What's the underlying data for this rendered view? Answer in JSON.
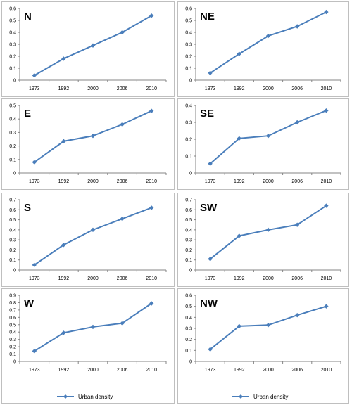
{
  "chart_data": [
    {
      "type": "line",
      "title": "N",
      "categories": [
        "1973",
        "1992",
        "2000",
        "2006",
        "2010"
      ],
      "series": [
        {
          "name": "Urban density",
          "values": [
            0.04,
            0.18,
            0.29,
            0.4,
            0.54
          ]
        }
      ],
      "ylim": [
        0,
        0.6
      ],
      "yticks": [
        "0",
        "0.1",
        "0.2",
        "0.3",
        "0.4",
        "0.5",
        "0.6"
      ],
      "legend": false,
      "grid": false
    },
    {
      "type": "line",
      "title": "NE",
      "categories": [
        "1973",
        "1992",
        "2000",
        "2006",
        "2010"
      ],
      "series": [
        {
          "name": "Urban density",
          "values": [
            0.06,
            0.22,
            0.37,
            0.45,
            0.57
          ]
        }
      ],
      "ylim": [
        0,
        0.6
      ],
      "yticks": [
        "0",
        "0.1",
        "0.2",
        "0.3",
        "0.4",
        "0.5",
        "0.6"
      ],
      "legend": false,
      "grid": false
    },
    {
      "type": "line",
      "title": "E",
      "categories": [
        "1973",
        "1992",
        "2000",
        "2006",
        "2010"
      ],
      "series": [
        {
          "name": "Urban density",
          "values": [
            0.08,
            0.235,
            0.275,
            0.36,
            0.46
          ]
        }
      ],
      "ylim": [
        0,
        0.5
      ],
      "yticks": [
        "0",
        "0.1",
        "0.2",
        "0.3",
        "0.4",
        "0.5"
      ],
      "legend": false,
      "grid": false
    },
    {
      "type": "line",
      "title": "SE",
      "categories": [
        "1973",
        "1992",
        "2000",
        "2006",
        "2010"
      ],
      "series": [
        {
          "name": "Urban density",
          "values": [
            0.055,
            0.205,
            0.22,
            0.3,
            0.37
          ]
        }
      ],
      "ylim": [
        0,
        0.4
      ],
      "yticks": [
        "0",
        "0.1",
        "0.2",
        "0.3",
        "0.4"
      ],
      "legend": false,
      "grid": false
    },
    {
      "type": "line",
      "title": "S",
      "categories": [
        "1973",
        "1992",
        "2000",
        "2006",
        "2010"
      ],
      "series": [
        {
          "name": "Urban density",
          "values": [
            0.05,
            0.25,
            0.4,
            0.51,
            0.62
          ]
        }
      ],
      "ylim": [
        0,
        0.7
      ],
      "yticks": [
        "0",
        "0.1",
        "0.2",
        "0.3",
        "0.4",
        "0.5",
        "0.6",
        "0.7"
      ],
      "legend": false,
      "grid": false
    },
    {
      "type": "line",
      "title": "SW",
      "categories": [
        "1973",
        "1992",
        "2000",
        "2006",
        "2010"
      ],
      "series": [
        {
          "name": "Urban density",
          "values": [
            0.11,
            0.34,
            0.4,
            0.45,
            0.64
          ]
        }
      ],
      "ylim": [
        0,
        0.7
      ],
      "yticks": [
        "0",
        "0.1",
        "0.2",
        "0.3",
        "0.4",
        "0.5",
        "0.6",
        "0.7"
      ],
      "legend": false,
      "grid": false
    },
    {
      "type": "line",
      "title": "W",
      "categories": [
        "1973",
        "1992",
        "2000",
        "2006",
        "2010"
      ],
      "series": [
        {
          "name": "Urban density",
          "values": [
            0.14,
            0.39,
            0.47,
            0.52,
            0.79
          ]
        }
      ],
      "ylim": [
        0,
        0.9
      ],
      "yticks": [
        "0",
        "0.1",
        "0.2",
        "0.3",
        "0.4",
        "0.5",
        "0.6",
        "0.7",
        "0.8",
        "0.9"
      ],
      "legend": true,
      "legend_position": "bottom",
      "grid": false
    },
    {
      "type": "line",
      "title": "NW",
      "categories": [
        "1973",
        "1992",
        "2000",
        "2006",
        "2010"
      ],
      "series": [
        {
          "name": "Urban density",
          "values": [
            0.11,
            0.32,
            0.33,
            0.42,
            0.5
          ]
        }
      ],
      "ylim": [
        0,
        0.6
      ],
      "yticks": [
        "0",
        "0.1",
        "0.2",
        "0.3",
        "0.4",
        "0.5",
        "0.6"
      ],
      "legend": true,
      "legend_position": "bottom",
      "grid": false
    }
  ],
  "colors": {
    "series": "#4a7ebb",
    "axis": "#868686",
    "text": "#000000",
    "frame": "#bfbfbf"
  }
}
